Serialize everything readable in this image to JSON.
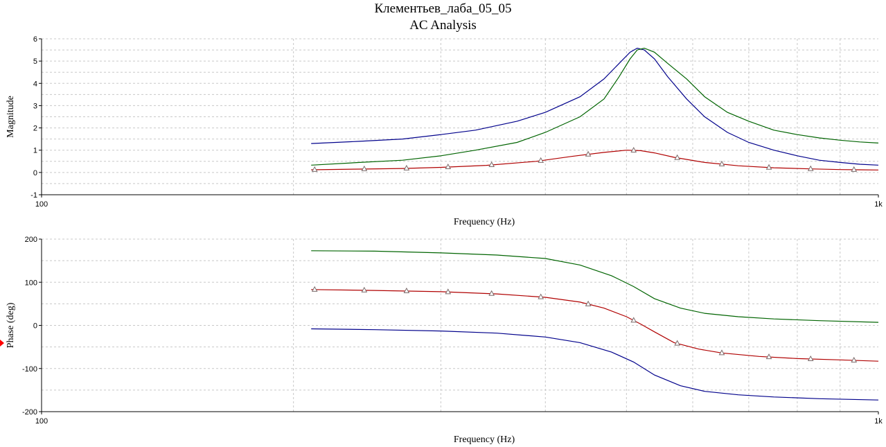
{
  "title": "Клементьев_лаба_05_05",
  "subtitle": "AC Analysis",
  "colors": {
    "blue": "#00008b",
    "green": "#006400",
    "red": "#b00000",
    "marker": "#7a6a6a"
  },
  "chart_data": [
    {
      "type": "line",
      "xscale": "log",
      "xlim": [
        100,
        1000
      ],
      "ylim": [
        -1,
        6
      ],
      "xlabel": "Frequency (Hz)",
      "ylabel": "Magnitude",
      "xticks": [
        {
          "v": 100,
          "label": "100"
        },
        {
          "v": 1000,
          "label": "1k"
        }
      ],
      "yticks": [
        -1,
        0,
        1,
        2,
        3,
        4,
        5,
        6
      ],
      "grid": true,
      "series": [
        {
          "color": "blue",
          "markers": false,
          "points": [
            [
              210,
              1.3
            ],
            [
              240,
              1.4
            ],
            [
              270,
              1.5
            ],
            [
              300,
              1.7
            ],
            [
              330,
              1.9
            ],
            [
              370,
              2.3
            ],
            [
              400,
              2.7
            ],
            [
              440,
              3.4
            ],
            [
              470,
              4.2
            ],
            [
              490,
              4.9
            ],
            [
              505,
              5.4
            ],
            [
              515,
              5.58
            ],
            [
              525,
              5.5
            ],
            [
              540,
              5.1
            ],
            [
              560,
              4.3
            ],
            [
              590,
              3.3
            ],
            [
              620,
              2.5
            ],
            [
              660,
              1.8
            ],
            [
              700,
              1.35
            ],
            [
              750,
              1.0
            ],
            [
              800,
              0.75
            ],
            [
              850,
              0.55
            ],
            [
              900,
              0.45
            ],
            [
              950,
              0.37
            ],
            [
              1000,
              0.33
            ]
          ]
        },
        {
          "color": "green",
          "markers": false,
          "points": [
            [
              210,
              0.33
            ],
            [
              240,
              0.45
            ],
            [
              270,
              0.55
            ],
            [
              300,
              0.75
            ],
            [
              330,
              1.0
            ],
            [
              370,
              1.35
            ],
            [
              400,
              1.8
            ],
            [
              440,
              2.5
            ],
            [
              470,
              3.3
            ],
            [
              490,
              4.3
            ],
            [
              505,
              5.1
            ],
            [
              515,
              5.5
            ],
            [
              525,
              5.58
            ],
            [
              540,
              5.4
            ],
            [
              560,
              4.9
            ],
            [
              590,
              4.2
            ],
            [
              620,
              3.4
            ],
            [
              660,
              2.7
            ],
            [
              700,
              2.3
            ],
            [
              750,
              1.9
            ],
            [
              800,
              1.7
            ],
            [
              850,
              1.55
            ],
            [
              900,
              1.45
            ],
            [
              950,
              1.37
            ],
            [
              1000,
              1.32
            ]
          ]
        },
        {
          "color": "red",
          "markers": true,
          "points": [
            [
              210,
              0.12
            ],
            [
              240,
              0.15
            ],
            [
              270,
              0.18
            ],
            [
              300,
              0.23
            ],
            [
              340,
              0.32
            ],
            [
              390,
              0.5
            ],
            [
              430,
              0.72
            ],
            [
              470,
              0.9
            ],
            [
              500,
              1.0
            ],
            [
              520,
              0.98
            ],
            [
              540,
              0.88
            ],
            [
              570,
              0.68
            ],
            [
              620,
              0.45
            ],
            [
              680,
              0.3
            ],
            [
              750,
              0.21
            ],
            [
              830,
              0.16
            ],
            [
              900,
              0.13
            ],
            [
              950,
              0.12
            ],
            [
              1000,
              0.11
            ]
          ],
          "marker_x": [
            212,
            243,
            273,
            306,
            345,
            395,
            450,
            510,
            575,
            650,
            740,
            830,
            935
          ]
        }
      ]
    },
    {
      "type": "line",
      "xscale": "log",
      "xlim": [
        100,
        1000
      ],
      "ylim": [
        -200,
        200
      ],
      "xlabel": "Frequency (Hz)",
      "ylabel": "Phase (deg)",
      "xticks": [
        {
          "v": 100,
          "label": "100"
        },
        {
          "v": 1000,
          "label": "1k"
        }
      ],
      "yticks": [
        -200,
        -100,
        0,
        100,
        200
      ],
      "grid": true,
      "series": [
        {
          "color": "green",
          "markers": false,
          "points": [
            [
              210,
              173
            ],
            [
              250,
              172
            ],
            [
              300,
              168
            ],
            [
              350,
              163
            ],
            [
              400,
              155
            ],
            [
              440,
              140
            ],
            [
              480,
              115
            ],
            [
              510,
              90
            ],
            [
              540,
              62
            ],
            [
              580,
              40
            ],
            [
              620,
              28
            ],
            [
              680,
              20
            ],
            [
              750,
              15
            ],
            [
              850,
              11
            ],
            [
              1000,
              7
            ]
          ]
        },
        {
          "color": "red",
          "markers": true,
          "points": [
            [
              210,
              83
            ],
            [
              250,
              81
            ],
            [
              300,
              78
            ],
            [
              350,
              73
            ],
            [
              400,
              65
            ],
            [
              440,
              54
            ],
            [
              470,
              40
            ],
            [
              500,
              20
            ],
            [
              520,
              3
            ],
            [
              540,
              -15
            ],
            [
              570,
              -40
            ],
            [
              610,
              -55
            ],
            [
              650,
              -64
            ],
            [
              720,
              -72
            ],
            [
              800,
              -77
            ],
            [
              900,
              -80
            ],
            [
              1000,
              -83
            ]
          ],
          "marker_x": [
            212,
            243,
            273,
            306,
            345,
            395,
            450,
            510,
            575,
            650,
            740,
            830,
            935
          ]
        },
        {
          "color": "blue",
          "markers": false,
          "points": [
            [
              210,
              -8
            ],
            [
              250,
              -10
            ],
            [
              300,
              -13
            ],
            [
              350,
              -18
            ],
            [
              400,
              -27
            ],
            [
              440,
              -40
            ],
            [
              480,
              -62
            ],
            [
              510,
              -85
            ],
            [
              540,
              -115
            ],
            [
              580,
              -140
            ],
            [
              620,
              -153
            ],
            [
              680,
              -161
            ],
            [
              750,
              -166
            ],
            [
              850,
              -170
            ],
            [
              1000,
              -173
            ]
          ]
        }
      ]
    }
  ]
}
